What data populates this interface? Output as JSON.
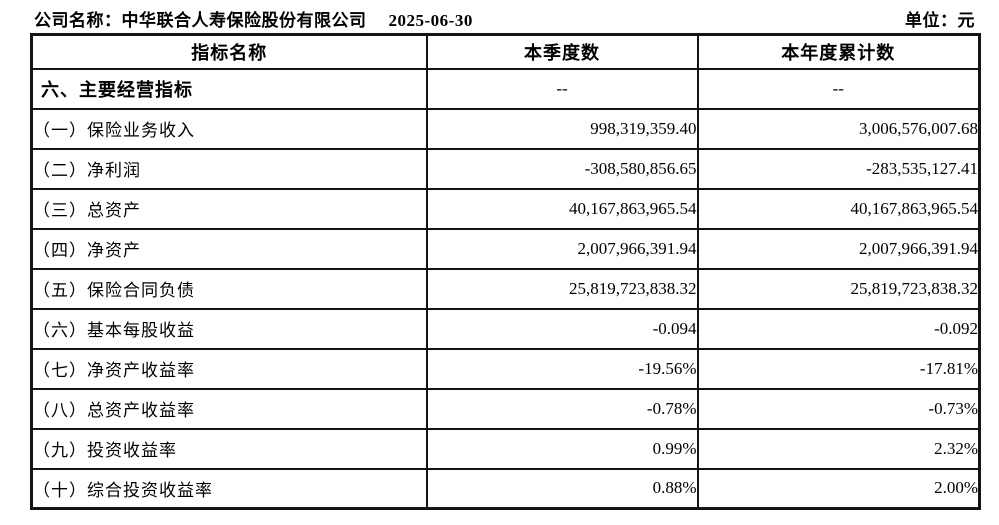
{
  "header": {
    "company_label": "公司名称：",
    "company_name": "中华联合人寿保险股份有限公司",
    "report_date": "2025-06-30",
    "unit_label": "单位：元"
  },
  "table": {
    "headers": [
      "指标名称",
      "本季度数",
      "本年度累计数"
    ],
    "rows": [
      {
        "label": "六、主要经营指标",
        "quarter": "--",
        "ytd": "--",
        "section": true
      },
      {
        "label": "（一）保险业务收入",
        "quarter": "998,319,359.40",
        "ytd": "3,006,576,007.68"
      },
      {
        "label": "（二）净利润",
        "quarter": "-308,580,856.65",
        "ytd": "-283,535,127.41"
      },
      {
        "label": "（三）总资产",
        "quarter": "40,167,863,965.54",
        "ytd": "40,167,863,965.54"
      },
      {
        "label": "（四）净资产",
        "quarter": "2,007,966,391.94",
        "ytd": "2,007,966,391.94"
      },
      {
        "label": "（五）保险合同负债",
        "quarter": "25,819,723,838.32",
        "ytd": "25,819,723,838.32"
      },
      {
        "label": "（六）基本每股收益",
        "quarter": "-0.094",
        "ytd": "-0.092"
      },
      {
        "label": "（七）净资产收益率",
        "quarter": "-19.56%",
        "ytd": "-17.81%"
      },
      {
        "label": "（八）总资产收益率",
        "quarter": "-0.78%",
        "ytd": "-0.73%"
      },
      {
        "label": "（九）投资收益率",
        "quarter": "0.99%",
        "ytd": "2.32%"
      },
      {
        "label": "（十）综合投资收益率",
        "quarter": "0.88%",
        "ytd": "2.00%"
      }
    ]
  }
}
